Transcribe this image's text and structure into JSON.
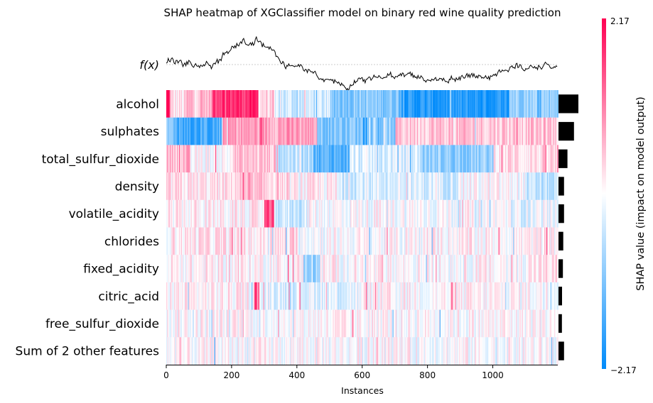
{
  "chart_data": {
    "type": "heatmap",
    "title": "SHAP heatmap of XGClassifier model on binary red wine quality prediction",
    "xlabel": "Instances",
    "fx_label": "f(x)",
    "n_instances": 1199,
    "xlim": [
      0,
      1199
    ],
    "x_ticks": [
      0,
      200,
      400,
      600,
      800,
      1000
    ],
    "features": [
      "alcohol",
      "sulphates",
      "total_sulfur_dioxide",
      "density",
      "volatile_acidity",
      "chlorides",
      "fixed_acidity",
      "citric_acid",
      "free_sulfur_dioxide",
      "Sum of 2 other features"
    ],
    "mean_abs_importance": [
      1.0,
      0.78,
      0.45,
      0.28,
      0.28,
      0.24,
      0.22,
      0.18,
      0.17,
      0.28
    ],
    "colorbar": {
      "label": "SHAP value (impact on model output)",
      "vmin": -2.17,
      "vmax": 2.17,
      "max_label": "2.17",
      "min_label": "−2.17",
      "colors": [
        "#008bfb",
        "#ffffff",
        "#ff0052"
      ]
    },
    "segments": [
      {
        "feature": "alcohol",
        "blocks": [
          [
            0,
            10,
            2.0
          ],
          [
            10,
            60,
            0.2
          ],
          [
            60,
            140,
            0.6
          ],
          [
            140,
            280,
            1.8
          ],
          [
            280,
            330,
            0.4
          ],
          [
            330,
            500,
            -0.4
          ],
          [
            500,
            720,
            -1.0
          ],
          [
            720,
            1050,
            -1.9
          ],
          [
            1050,
            1199,
            -0.8
          ]
        ]
      },
      {
        "feature": "sulphates",
        "blocks": [
          [
            0,
            30,
            -1.0
          ],
          [
            30,
            170,
            -1.6
          ],
          [
            170,
            460,
            0.8
          ],
          [
            460,
            700,
            -1.0
          ],
          [
            700,
            1199,
            0.5
          ]
        ]
      },
      {
        "feature": "total_sulfur_dioxide",
        "blocks": [
          [
            0,
            70,
            0.6
          ],
          [
            70,
            200,
            0.0
          ],
          [
            200,
            340,
            0.5
          ],
          [
            340,
            450,
            -0.5
          ],
          [
            450,
            560,
            -1.4
          ],
          [
            560,
            780,
            -0.3
          ],
          [
            780,
            1000,
            -0.9
          ],
          [
            1000,
            1199,
            0.3
          ]
        ]
      },
      {
        "feature": "density",
        "blocks": [
          [
            0,
            200,
            0.2
          ],
          [
            200,
            360,
            0.4
          ],
          [
            360,
            520,
            0.1
          ],
          [
            520,
            900,
            -0.3
          ],
          [
            900,
            1100,
            0.0
          ],
          [
            1100,
            1199,
            -0.6
          ]
        ]
      },
      {
        "feature": "volatile_acidity",
        "blocks": [
          [
            0,
            300,
            0.1
          ],
          [
            300,
            330,
            1.4
          ],
          [
            330,
            430,
            -0.4
          ],
          [
            430,
            1050,
            0.0
          ],
          [
            1050,
            1199,
            -0.2
          ]
        ]
      },
      {
        "feature": "chlorides",
        "blocks": [
          [
            0,
            400,
            0.2
          ],
          [
            400,
            800,
            0.0
          ],
          [
            800,
            1199,
            0.1
          ]
        ]
      },
      {
        "feature": "fixed_acidity",
        "blocks": [
          [
            0,
            420,
            0.1
          ],
          [
            420,
            470,
            -0.7
          ],
          [
            470,
            1100,
            0.05
          ],
          [
            1100,
            1199,
            0.2
          ]
        ]
      },
      {
        "feature": "citric_acid",
        "blocks": [
          [
            0,
            270,
            0.1
          ],
          [
            270,
            285,
            1.6
          ],
          [
            285,
            600,
            -0.2
          ],
          [
            600,
            1199,
            0.05
          ]
        ]
      },
      {
        "feature": "free_sulfur_dioxide",
        "blocks": [
          [
            0,
            1199,
            0.05
          ]
        ]
      },
      {
        "feature": "Sum of 2 other features",
        "blocks": [
          [
            0,
            1199,
            0.0
          ]
        ]
      }
    ]
  }
}
